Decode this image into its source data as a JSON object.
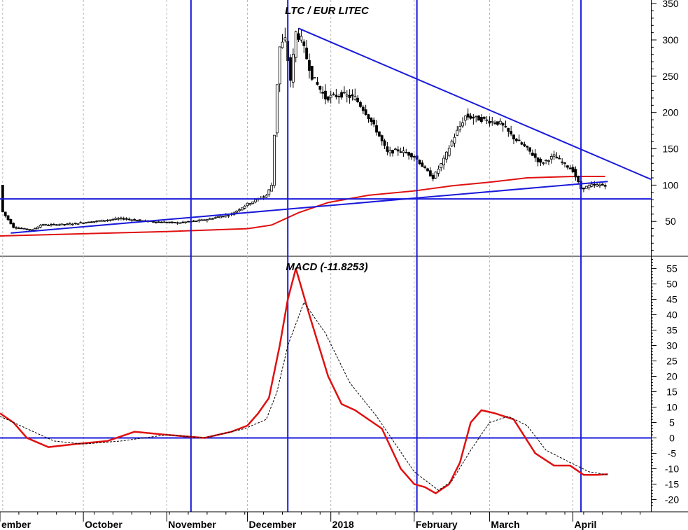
{
  "chart_data": [
    {
      "type": "candlestick",
      "title": "LTC / EUR LITEC",
      "y_ticks": [
        50,
        100,
        150,
        200,
        250,
        300,
        350
      ],
      "ylim": [
        2,
        355
      ],
      "x_months": [
        "ember",
        "October",
        "November",
        "December",
        "2018",
        "February",
        "March",
        "April"
      ],
      "xlim": [
        "2017-08-31",
        "2018-04-30"
      ],
      "colors": {
        "trendline": "#1a1adb",
        "moving_average": "#e01010",
        "candle": "#000000"
      },
      "price_path": [
        [
          "2017-09-01",
          63
        ],
        [
          "2017-09-05",
          42
        ],
        [
          "2017-09-12",
          38
        ],
        [
          "2017-09-15",
          45
        ],
        [
          "2017-09-25",
          46
        ],
        [
          "2017-10-05",
          50
        ],
        [
          "2017-10-15",
          54
        ],
        [
          "2017-10-25",
          50
        ],
        [
          "2017-11-05",
          48
        ],
        [
          "2017-11-15",
          52
        ],
        [
          "2017-11-25",
          60
        ],
        [
          "2017-12-01",
          74
        ],
        [
          "2017-12-08",
          86
        ],
        [
          "2017-12-10",
          100
        ],
        [
          "2017-12-12",
          240
        ],
        [
          "2017-12-13",
          290
        ],
        [
          "2017-12-15",
          300
        ],
        [
          "2017-12-17",
          245
        ],
        [
          "2017-12-19",
          310
        ],
        [
          "2017-12-21",
          300
        ],
        [
          "2017-12-25",
          250
        ],
        [
          "2017-12-30",
          220
        ],
        [
          "2018-01-05",
          225
        ],
        [
          "2018-01-10",
          220
        ],
        [
          "2018-01-14",
          200
        ],
        [
          "2018-01-18",
          175
        ],
        [
          "2018-01-22",
          145
        ],
        [
          "2018-01-26",
          148
        ],
        [
          "2018-02-01",
          140
        ],
        [
          "2018-02-05",
          122
        ],
        [
          "2018-02-08",
          110
        ],
        [
          "2018-02-12",
          135
        ],
        [
          "2018-02-15",
          160
        ],
        [
          "2018-02-20",
          195
        ],
        [
          "2018-02-27",
          190
        ],
        [
          "2018-03-05",
          185
        ],
        [
          "2018-03-10",
          165
        ],
        [
          "2018-03-15",
          150
        ],
        [
          "2018-03-20",
          130
        ],
        [
          "2018-03-25",
          140
        ],
        [
          "2018-04-01",
          120
        ],
        [
          "2018-04-04",
          95
        ],
        [
          "2018-04-08",
          100
        ],
        [
          "2018-04-13",
          100
        ]
      ],
      "moving_average": [
        [
          "2017-08-31",
          30
        ],
        [
          "2017-10-01",
          33
        ],
        [
          "2017-11-01",
          36
        ],
        [
          "2017-12-01",
          40
        ],
        [
          "2017-12-10",
          45
        ],
        [
          "2017-12-20",
          62
        ],
        [
          "2017-12-31",
          76
        ],
        [
          "2018-01-15",
          86
        ],
        [
          "2018-02-01",
          92
        ],
        [
          "2018-02-15",
          99
        ],
        [
          "2018-03-01",
          104
        ],
        [
          "2018-03-15",
          110
        ],
        [
          "2018-04-01",
          112
        ],
        [
          "2018-04-13",
          112
        ]
      ],
      "horizontal_line": 81,
      "trendlines": [
        {
          "from": [
            "2017-09-04",
            34
          ],
          "to": [
            "2018-04-14",
            105
          ]
        },
        {
          "from": [
            "2017-12-20",
            316
          ],
          "to": [
            "2018-04-30",
            108
          ]
        }
      ],
      "vertical_lines": [
        "2017-11-10",
        "2017-12-16",
        "2018-02-02",
        "2018-04-04"
      ]
    },
    {
      "type": "line",
      "title": "MACD (-11.8253)",
      "y_ticks": [
        -20,
        -15,
        -10,
        -5,
        0,
        5,
        10,
        15,
        20,
        25,
        30,
        35,
        40,
        45,
        50,
        55
      ],
      "ylim": [
        -24,
        59
      ],
      "zero_line": 0,
      "series": [
        {
          "color": "#e01010",
          "style": "solid",
          "points": [
            [
              "2017-08-31",
              8
            ],
            [
              "2017-09-05",
              5
            ],
            [
              "2017-09-10",
              0
            ],
            [
              "2017-09-18",
              -3
            ],
            [
              "2017-09-28",
              -2
            ],
            [
              "2017-10-10",
              -1
            ],
            [
              "2017-10-20",
              2
            ],
            [
              "2017-11-01",
              1
            ],
            [
              "2017-11-15",
              0
            ],
            [
              "2017-11-25",
              2
            ],
            [
              "2017-12-01",
              4
            ],
            [
              "2017-12-05",
              8
            ],
            [
              "2017-12-09",
              13
            ],
            [
              "2017-12-13",
              30
            ],
            [
              "2017-12-16",
              45
            ],
            [
              "2017-12-19",
              55
            ],
            [
              "2017-12-24",
              40
            ],
            [
              "2017-12-31",
              20
            ],
            [
              "2018-01-05",
              11
            ],
            [
              "2018-01-10",
              9
            ],
            [
              "2018-01-20",
              3
            ],
            [
              "2018-01-27",
              -10
            ],
            [
              "2018-02-01",
              -15
            ],
            [
              "2018-02-05",
              -16
            ],
            [
              "2018-02-09",
              -18
            ],
            [
              "2018-02-14",
              -15
            ],
            [
              "2018-02-18",
              -8
            ],
            [
              "2018-02-22",
              5
            ],
            [
              "2018-02-26",
              9
            ],
            [
              "2018-03-03",
              8
            ],
            [
              "2018-03-10",
              6
            ],
            [
              "2018-03-18",
              -5
            ],
            [
              "2018-03-25",
              -9
            ],
            [
              "2018-03-31",
              -9
            ],
            [
              "2018-04-05",
              -12
            ],
            [
              "2018-04-10",
              -12
            ],
            [
              "2018-04-14",
              -11.8
            ]
          ]
        },
        {
          "color": "#000000",
          "style": "dashed",
          "points": [
            [
              "2017-08-31",
              7
            ],
            [
              "2017-09-10",
              3
            ],
            [
              "2017-09-20",
              -1
            ],
            [
              "2017-10-01",
              -2
            ],
            [
              "2017-10-15",
              -1
            ],
            [
              "2017-11-01",
              1
            ],
            [
              "2017-11-15",
              0
            ],
            [
              "2017-11-30",
              3
            ],
            [
              "2017-12-08",
              6
            ],
            [
              "2017-12-12",
              15
            ],
            [
              "2017-12-16",
              30
            ],
            [
              "2017-12-22",
              44
            ],
            [
              "2017-12-30",
              34
            ],
            [
              "2018-01-08",
              18
            ],
            [
              "2018-01-18",
              7
            ],
            [
              "2018-01-25",
              -2
            ],
            [
              "2018-02-01",
              -11
            ],
            [
              "2018-02-10",
              -17
            ],
            [
              "2018-02-15",
              -14
            ],
            [
              "2018-02-22",
              -4
            ],
            [
              "2018-03-01",
              5
            ],
            [
              "2018-03-08",
              7
            ],
            [
              "2018-03-15",
              4
            ],
            [
              "2018-03-22",
              -4
            ],
            [
              "2018-03-31",
              -8
            ],
            [
              "2018-04-07",
              -11
            ],
            [
              "2018-04-14",
              -12
            ]
          ]
        }
      ],
      "vertical_lines": [
        "2017-11-10",
        "2017-12-16",
        "2018-02-02",
        "2018-04-04"
      ]
    }
  ]
}
